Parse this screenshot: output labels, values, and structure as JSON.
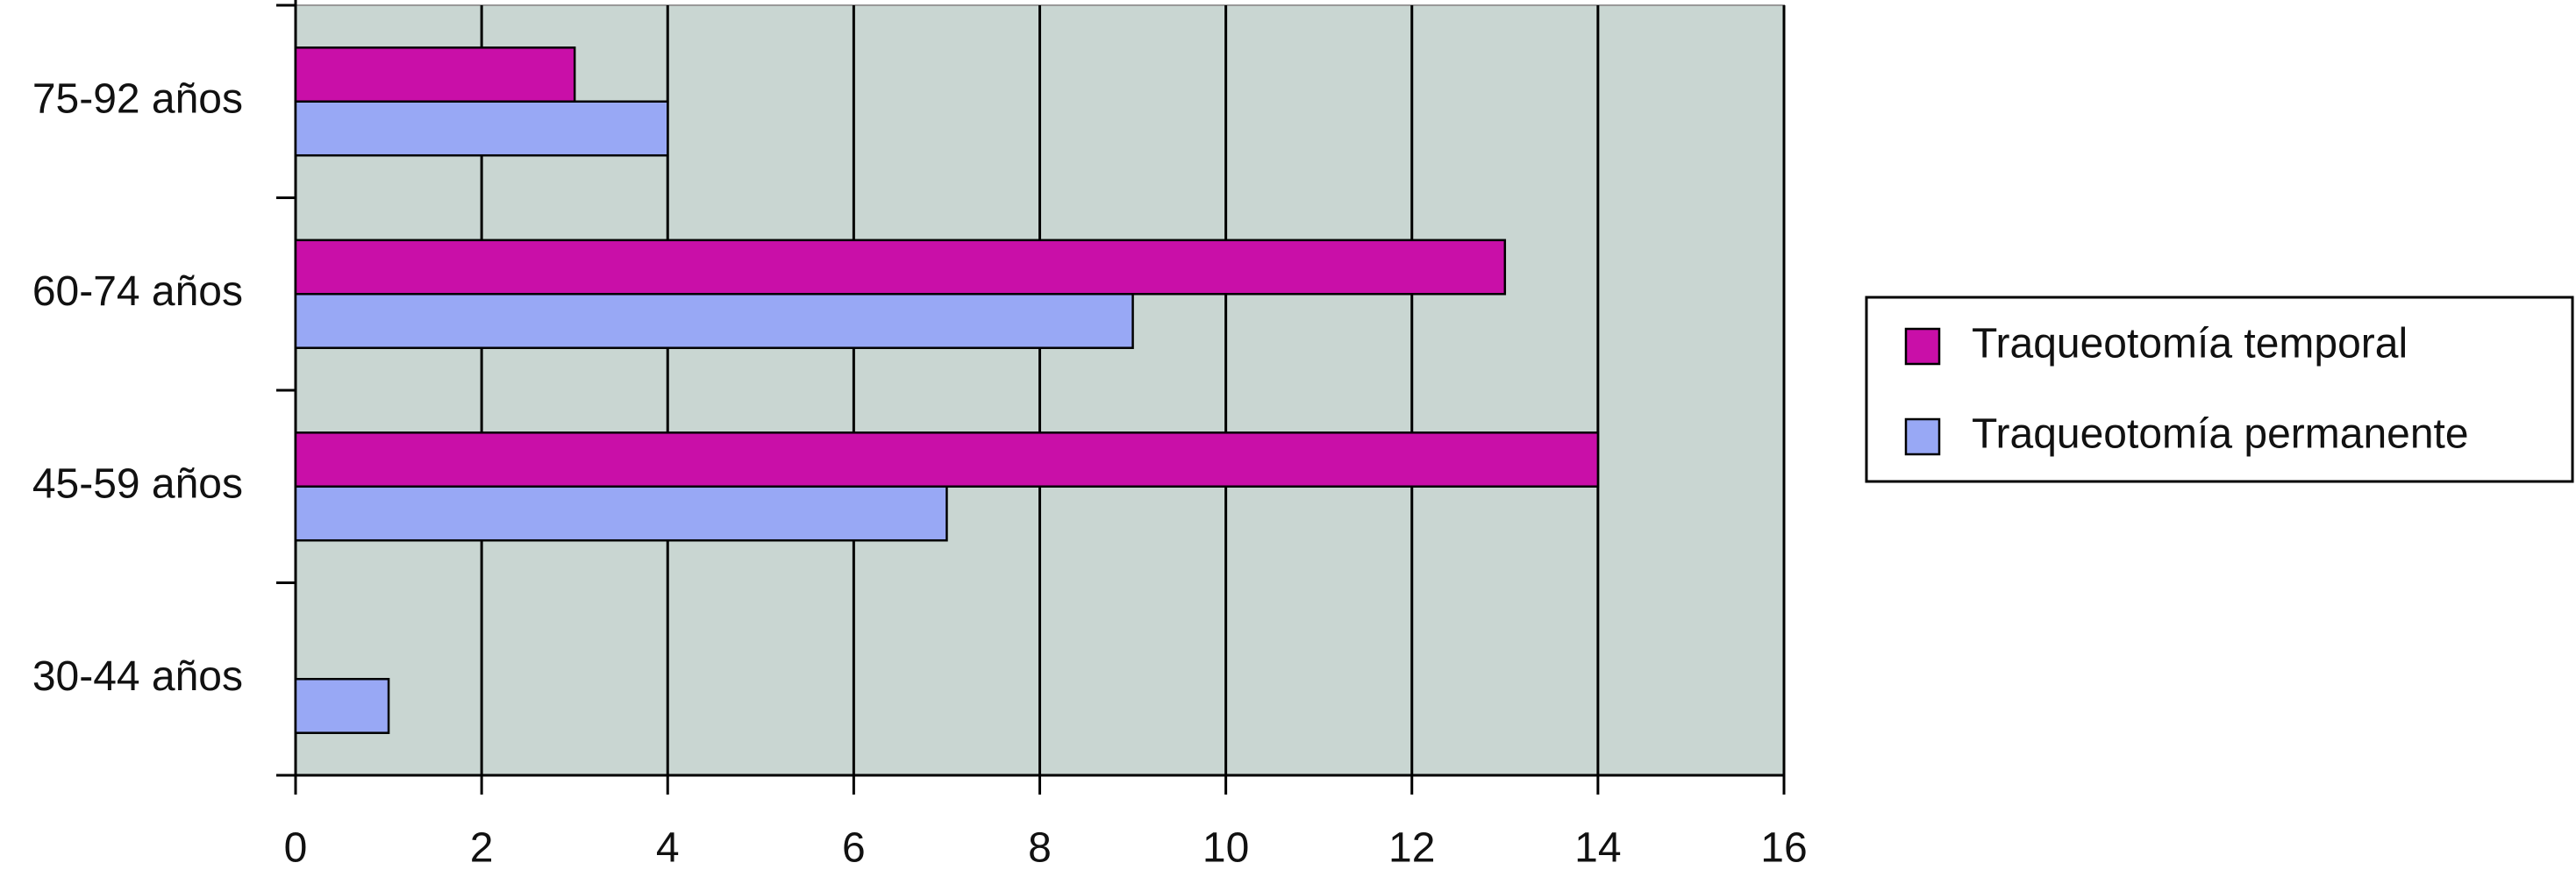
{
  "chart_data": {
    "type": "bar",
    "orientation": "horizontal",
    "categories": [
      "75-92 años",
      "60-74 años",
      "45-59 años",
      "30-44 años"
    ],
    "series": [
      {
        "name": "Traqueotomía temporal",
        "color": "#c90fa8",
        "values": [
          3,
          13,
          14,
          0
        ]
      },
      {
        "name": "Traqueotomía permanente",
        "color": "#98a8f5",
        "values": [
          4,
          9,
          7,
          1
        ]
      }
    ],
    "xlim": [
      0,
      16
    ],
    "xticks": [
      0,
      2,
      4,
      6,
      8,
      10,
      12,
      14,
      16
    ],
    "grid": true,
    "legend": "right",
    "plot_background": "#c9d6d2"
  }
}
